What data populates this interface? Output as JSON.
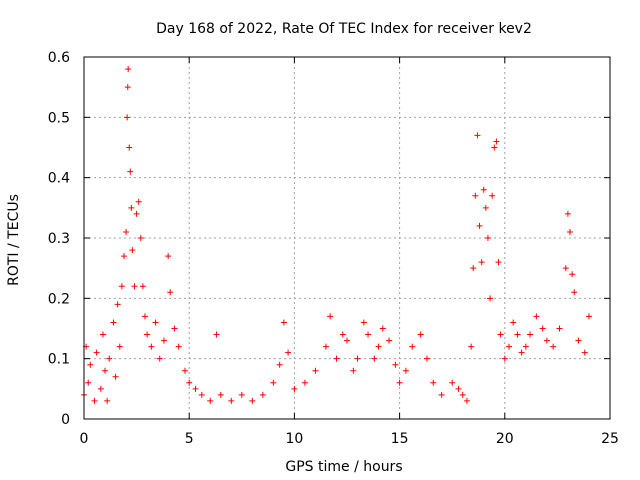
{
  "chart_data": {
    "type": "scatter",
    "title": "Day 168 of 2022, Rate Of TEC Index for receiver kev2",
    "xlabel": "GPS time / hours",
    "ylabel": "ROTI / TECUs",
    "xlim": [
      0,
      25
    ],
    "ylim": [
      0,
      0.6
    ],
    "xticks": [
      0,
      5,
      10,
      15,
      20,
      25
    ],
    "xtick_labels": [
      "0",
      "5",
      "10",
      "15",
      "20",
      "25"
    ],
    "yticks": [
      0,
      0.1,
      0.2,
      0.3,
      0.4,
      0.5,
      0.6
    ],
    "ytick_labels": [
      "0",
      "0.1",
      "0.2",
      "0.3",
      "0.4",
      "0.5",
      "0.6"
    ],
    "grid": true,
    "legend": "none",
    "marker": "plus",
    "color": "#ff0000",
    "series": [
      {
        "points": [
          [
            0.0,
            0.04
          ],
          [
            0.1,
            0.12
          ],
          [
            0.2,
            0.06
          ],
          [
            0.3,
            0.09
          ],
          [
            0.5,
            0.03
          ],
          [
            0.6,
            0.11
          ],
          [
            0.8,
            0.05
          ],
          [
            0.9,
            0.14
          ],
          [
            1.0,
            0.08
          ],
          [
            1.1,
            0.03
          ],
          [
            1.2,
            0.1
          ],
          [
            1.4,
            0.16
          ],
          [
            1.5,
            0.07
          ],
          [
            1.6,
            0.19
          ],
          [
            1.7,
            0.12
          ],
          [
            1.8,
            0.22
          ],
          [
            1.9,
            0.27
          ],
          [
            2.0,
            0.31
          ],
          [
            2.05,
            0.5
          ],
          [
            2.08,
            0.55
          ],
          [
            2.1,
            0.58
          ],
          [
            2.15,
            0.45
          ],
          [
            2.2,
            0.41
          ],
          [
            2.25,
            0.35
          ],
          [
            2.3,
            0.28
          ],
          [
            2.4,
            0.22
          ],
          [
            2.5,
            0.34
          ],
          [
            2.6,
            0.36
          ],
          [
            2.7,
            0.3
          ],
          [
            2.8,
            0.22
          ],
          [
            2.9,
            0.17
          ],
          [
            3.0,
            0.14
          ],
          [
            3.2,
            0.12
          ],
          [
            3.4,
            0.16
          ],
          [
            3.6,
            0.1
          ],
          [
            3.8,
            0.13
          ],
          [
            4.0,
            0.27
          ],
          [
            4.1,
            0.21
          ],
          [
            4.3,
            0.15
          ],
          [
            4.5,
            0.12
          ],
          [
            4.8,
            0.08
          ],
          [
            5.0,
            0.06
          ],
          [
            5.3,
            0.05
          ],
          [
            5.6,
            0.04
          ],
          [
            6.0,
            0.03
          ],
          [
            6.3,
            0.14
          ],
          [
            6.5,
            0.04
          ],
          [
            7.0,
            0.03
          ],
          [
            7.5,
            0.04
          ],
          [
            8.0,
            0.03
          ],
          [
            8.5,
            0.04
          ],
          [
            9.0,
            0.06
          ],
          [
            9.3,
            0.09
          ],
          [
            9.5,
            0.16
          ],
          [
            9.7,
            0.11
          ],
          [
            10.0,
            0.05
          ],
          [
            10.5,
            0.06
          ],
          [
            11.0,
            0.08
          ],
          [
            11.5,
            0.12
          ],
          [
            11.7,
            0.17
          ],
          [
            12.0,
            0.1
          ],
          [
            12.3,
            0.14
          ],
          [
            12.5,
            0.13
          ],
          [
            12.8,
            0.08
          ],
          [
            13.0,
            0.1
          ],
          [
            13.3,
            0.16
          ],
          [
            13.5,
            0.14
          ],
          [
            13.8,
            0.1
          ],
          [
            14.0,
            0.12
          ],
          [
            14.2,
            0.15
          ],
          [
            14.5,
            0.13
          ],
          [
            14.8,
            0.09
          ],
          [
            15.0,
            0.06
          ],
          [
            15.3,
            0.08
          ],
          [
            15.6,
            0.12
          ],
          [
            16.0,
            0.14
          ],
          [
            16.3,
            0.1
          ],
          [
            16.6,
            0.06
          ],
          [
            17.0,
            0.04
          ],
          [
            17.5,
            0.06
          ],
          [
            17.8,
            0.05
          ],
          [
            18.0,
            0.04
          ],
          [
            18.2,
            0.03
          ],
          [
            18.4,
            0.12
          ],
          [
            18.5,
            0.25
          ],
          [
            18.6,
            0.37
          ],
          [
            18.7,
            0.47
          ],
          [
            18.8,
            0.32
          ],
          [
            18.9,
            0.26
          ],
          [
            19.0,
            0.38
          ],
          [
            19.1,
            0.35
          ],
          [
            19.2,
            0.3
          ],
          [
            19.3,
            0.2
          ],
          [
            19.4,
            0.37
          ],
          [
            19.5,
            0.45
          ],
          [
            19.6,
            0.46
          ],
          [
            19.7,
            0.26
          ],
          [
            19.8,
            0.14
          ],
          [
            20.0,
            0.1
          ],
          [
            20.2,
            0.12
          ],
          [
            20.4,
            0.16
          ],
          [
            20.6,
            0.14
          ],
          [
            20.8,
            0.11
          ],
          [
            21.0,
            0.12
          ],
          [
            21.2,
            0.14
          ],
          [
            21.5,
            0.17
          ],
          [
            21.8,
            0.15
          ],
          [
            22.0,
            0.13
          ],
          [
            22.3,
            0.12
          ],
          [
            22.6,
            0.15
          ],
          [
            22.9,
            0.25
          ],
          [
            23.0,
            0.34
          ],
          [
            23.1,
            0.31
          ],
          [
            23.2,
            0.24
          ],
          [
            23.3,
            0.21
          ],
          [
            23.5,
            0.13
          ],
          [
            23.8,
            0.11
          ],
          [
            24.0,
            0.17
          ]
        ]
      }
    ]
  }
}
